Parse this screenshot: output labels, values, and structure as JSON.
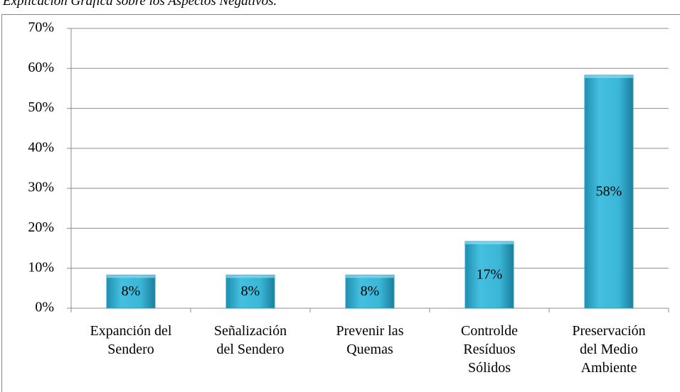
{
  "chart_data": {
    "type": "bar",
    "title": "Explicación Gráfica sobre los Aspectos Negativos.",
    "categories": [
      "Expanción del\nSendero",
      "Señalización\ndel Sendero",
      "Prevenir las\nQuemas",
      "Controlde\nResíduos\nSólidos",
      "Preservación\ndel Medio\nAmbiente"
    ],
    "values": [
      8.3,
      8.3,
      8.3,
      16.7,
      58.3
    ],
    "value_labels": [
      "8%",
      "8%",
      "8%",
      "17%",
      "58%"
    ],
    "color": "#3bb6d6",
    "ylim": [
      0,
      70
    ],
    "yticks": [
      {
        "value": 0,
        "label": "0%"
      },
      {
        "value": 10,
        "label": "10%"
      },
      {
        "value": 20,
        "label": "20%"
      },
      {
        "value": 30,
        "label": "30%"
      },
      {
        "value": 40,
        "label": "40%"
      },
      {
        "value": 50,
        "label": "50%"
      },
      {
        "value": 60,
        "label": "60%"
      },
      {
        "value": 70,
        "label": "70%"
      }
    ],
    "grid": true
  }
}
